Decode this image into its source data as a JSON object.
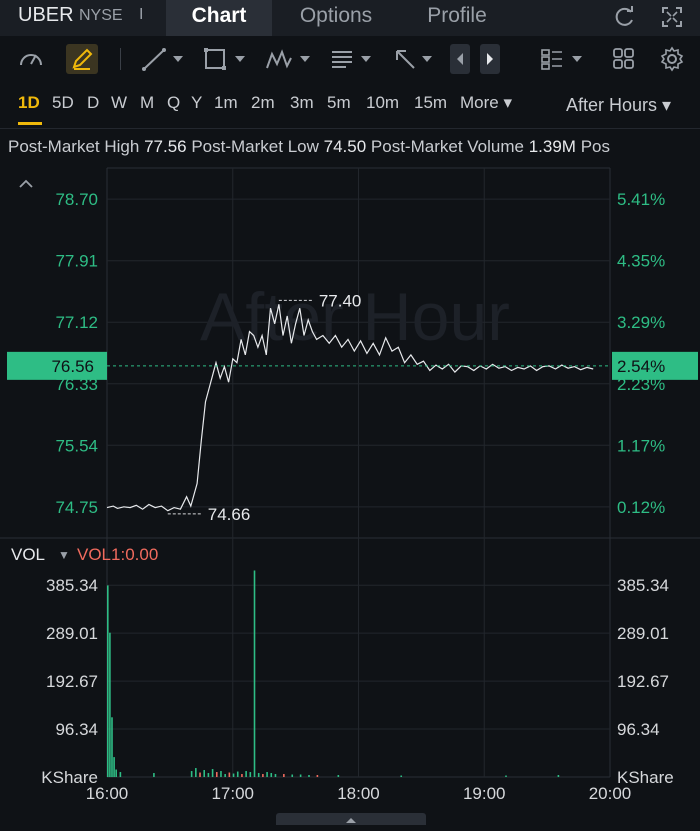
{
  "header": {
    "ticker": "UBER",
    "exchange": "NYSE",
    "separator": "I",
    "tabs": [
      {
        "label": "Chart"
      },
      {
        "label": "Options"
      },
      {
        "label": "Profile"
      }
    ]
  },
  "toolbar": {
    "icons": [
      "gauge-icon",
      "draw-pen-icon",
      "line-tool-icon",
      "rectangle-tool-icon",
      "pattern-tool-icon",
      "text-tool-icon",
      "arrow-tool-icon",
      "scroll-left-icon",
      "scroll-right-icon",
      "layout-list-icon",
      "grid-icon",
      "settings-gear-icon"
    ]
  },
  "timeframes": [
    "1D",
    "5D",
    "D",
    "W",
    "M",
    "Q",
    "Y",
    "1m",
    "2m",
    "3m",
    "5m",
    "10m",
    "15m",
    "More ▾"
  ],
  "session_selector": "After Hours ▾",
  "post_market": {
    "high_label": "Post-Market High",
    "high_value": "77.56",
    "low_label": "Post-Market Low",
    "low_value": "74.50",
    "volume_label": "Post-Market Volume",
    "volume_value": "1.39M",
    "more_label": "Pos"
  },
  "colors": {
    "up": "#2ebd85",
    "down": "#f06b5e",
    "accent": "#f0b90b",
    "price_line": "#e7e9ec"
  },
  "chart_data": {
    "type": "line",
    "watermark": "After Hour",
    "y_left_ticks": [
      "78.70",
      "77.91",
      "77.12",
      "76.33",
      "75.54",
      "74.75"
    ],
    "y_right_ticks": [
      "5.41%",
      "4.35%",
      "3.29%",
      "2.23%",
      "1.17%",
      "0.12%"
    ],
    "current_price": "76.56",
    "current_pct": "2.54%",
    "max_label": "77.40",
    "min_label": "74.66",
    "x_ticks": [
      "16:00",
      "17:00",
      "18:00",
      "19:00",
      "20:00"
    ],
    "ylim": [
      74.35,
      79.1
    ],
    "x_minutes_range": [
      0,
      240
    ],
    "price": [
      [
        0,
        74.74
      ],
      [
        3,
        74.76
      ],
      [
        5,
        74.73
      ],
      [
        8,
        74.75
      ],
      [
        11,
        74.74
      ],
      [
        14,
        74.77
      ],
      [
        17,
        74.72
      ],
      [
        20,
        74.78
      ],
      [
        23,
        74.74
      ],
      [
        26,
        74.76
      ],
      [
        29,
        74.7
      ],
      [
        32,
        74.74
      ],
      [
        35,
        74.72
      ],
      [
        38,
        74.88
      ],
      [
        40,
        74.76
      ],
      [
        43,
        75.05
      ],
      [
        45,
        75.6
      ],
      [
        47,
        76.1
      ],
      [
        49,
        76.3
      ],
      [
        52,
        76.6
      ],
      [
        54,
        76.4
      ],
      [
        56,
        76.55
      ],
      [
        58,
        76.35
      ],
      [
        60,
        76.65
      ],
      [
        62,
        76.6
      ],
      [
        64,
        76.9
      ],
      [
        66,
        76.7
      ],
      [
        68,
        77.0
      ],
      [
        70,
        76.95
      ],
      [
        72,
        76.8
      ],
      [
        74,
        76.95
      ],
      [
        76,
        76.7
      ],
      [
        78,
        77.3
      ],
      [
        80,
        77.1
      ],
      [
        82,
        77.35
      ],
      [
        84,
        76.95
      ],
      [
        86,
        77.2
      ],
      [
        88,
        76.85
      ],
      [
        90,
        77.1
      ],
      [
        92,
        77.3
      ],
      [
        94,
        76.95
      ],
      [
        96,
        77.15
      ],
      [
        98,
        77.0
      ],
      [
        100,
        76.9
      ],
      [
        103,
        76.95
      ],
      [
        106,
        76.85
      ],
      [
        109,
        76.95
      ],
      [
        112,
        76.8
      ],
      [
        115,
        76.9
      ],
      [
        118,
        76.75
      ],
      [
        121,
        76.88
      ],
      [
        124,
        76.72
      ],
      [
        127,
        76.85
      ],
      [
        130,
        76.7
      ],
      [
        133,
        76.92
      ],
      [
        136,
        76.75
      ],
      [
        139,
        76.8
      ],
      [
        142,
        76.6
      ],
      [
        145,
        76.7
      ],
      [
        148,
        76.58
      ],
      [
        151,
        76.62
      ],
      [
        154,
        76.5
      ],
      [
        157,
        76.57
      ],
      [
        160,
        76.52
      ],
      [
        163,
        76.58
      ],
      [
        166,
        76.48
      ],
      [
        169,
        76.56
      ],
      [
        172,
        76.55
      ],
      [
        175,
        76.5
      ],
      [
        178,
        76.56
      ],
      [
        181,
        76.52
      ],
      [
        184,
        76.58
      ],
      [
        187,
        76.53
      ],
      [
        190,
        76.55
      ],
      [
        193,
        76.5
      ],
      [
        196,
        76.54
      ],
      [
        199,
        76.52
      ],
      [
        202,
        76.56
      ],
      [
        205,
        76.5
      ],
      [
        208,
        76.55
      ],
      [
        211,
        76.56
      ],
      [
        214,
        76.52
      ],
      [
        217,
        76.57
      ],
      [
        220,
        76.53
      ],
      [
        223,
        76.55
      ],
      [
        226,
        76.51
      ],
      [
        229,
        76.54
      ],
      [
        232,
        76.52
      ]
    ],
    "volume": {
      "ticks": [
        "385.34",
        "289.01",
        "192.67",
        "96.34"
      ],
      "unit": "KShare",
      "ylim": [
        0,
        420
      ],
      "bars": [
        [
          0,
          385,
          "up"
        ],
        [
          1,
          290,
          "up"
        ],
        [
          2,
          120,
          "up"
        ],
        [
          3,
          40,
          "up"
        ],
        [
          4,
          15,
          "up"
        ],
        [
          6,
          10,
          "up"
        ],
        [
          22,
          8,
          "up"
        ],
        [
          40,
          12,
          "up"
        ],
        [
          42,
          18,
          "up"
        ],
        [
          44,
          9,
          "down"
        ],
        [
          46,
          14,
          "up"
        ],
        [
          48,
          8,
          "up"
        ],
        [
          50,
          16,
          "up"
        ],
        [
          52,
          10,
          "down"
        ],
        [
          54,
          12,
          "up"
        ],
        [
          56,
          6,
          "up"
        ],
        [
          58,
          9,
          "down"
        ],
        [
          60,
          7,
          "up"
        ],
        [
          62,
          11,
          "up"
        ],
        [
          64,
          6,
          "down"
        ],
        [
          66,
          12,
          "up"
        ],
        [
          68,
          10,
          "up"
        ],
        [
          70,
          415,
          "up"
        ],
        [
          72,
          8,
          "up"
        ],
        [
          74,
          6,
          "down"
        ],
        [
          76,
          10,
          "up"
        ],
        [
          78,
          8,
          "up"
        ],
        [
          80,
          6,
          "up"
        ],
        [
          84,
          6,
          "down"
        ],
        [
          88,
          5,
          "up"
        ],
        [
          92,
          5,
          "up"
        ],
        [
          96,
          4,
          "up"
        ],
        [
          100,
          4,
          "down"
        ],
        [
          110,
          4,
          "up"
        ],
        [
          140,
          3,
          "up"
        ],
        [
          190,
          3,
          "up"
        ],
        [
          215,
          4,
          "up"
        ]
      ]
    }
  },
  "volume_panel": {
    "title": "VOL",
    "caret": "▼",
    "indicator": "VOL1:0.00"
  }
}
